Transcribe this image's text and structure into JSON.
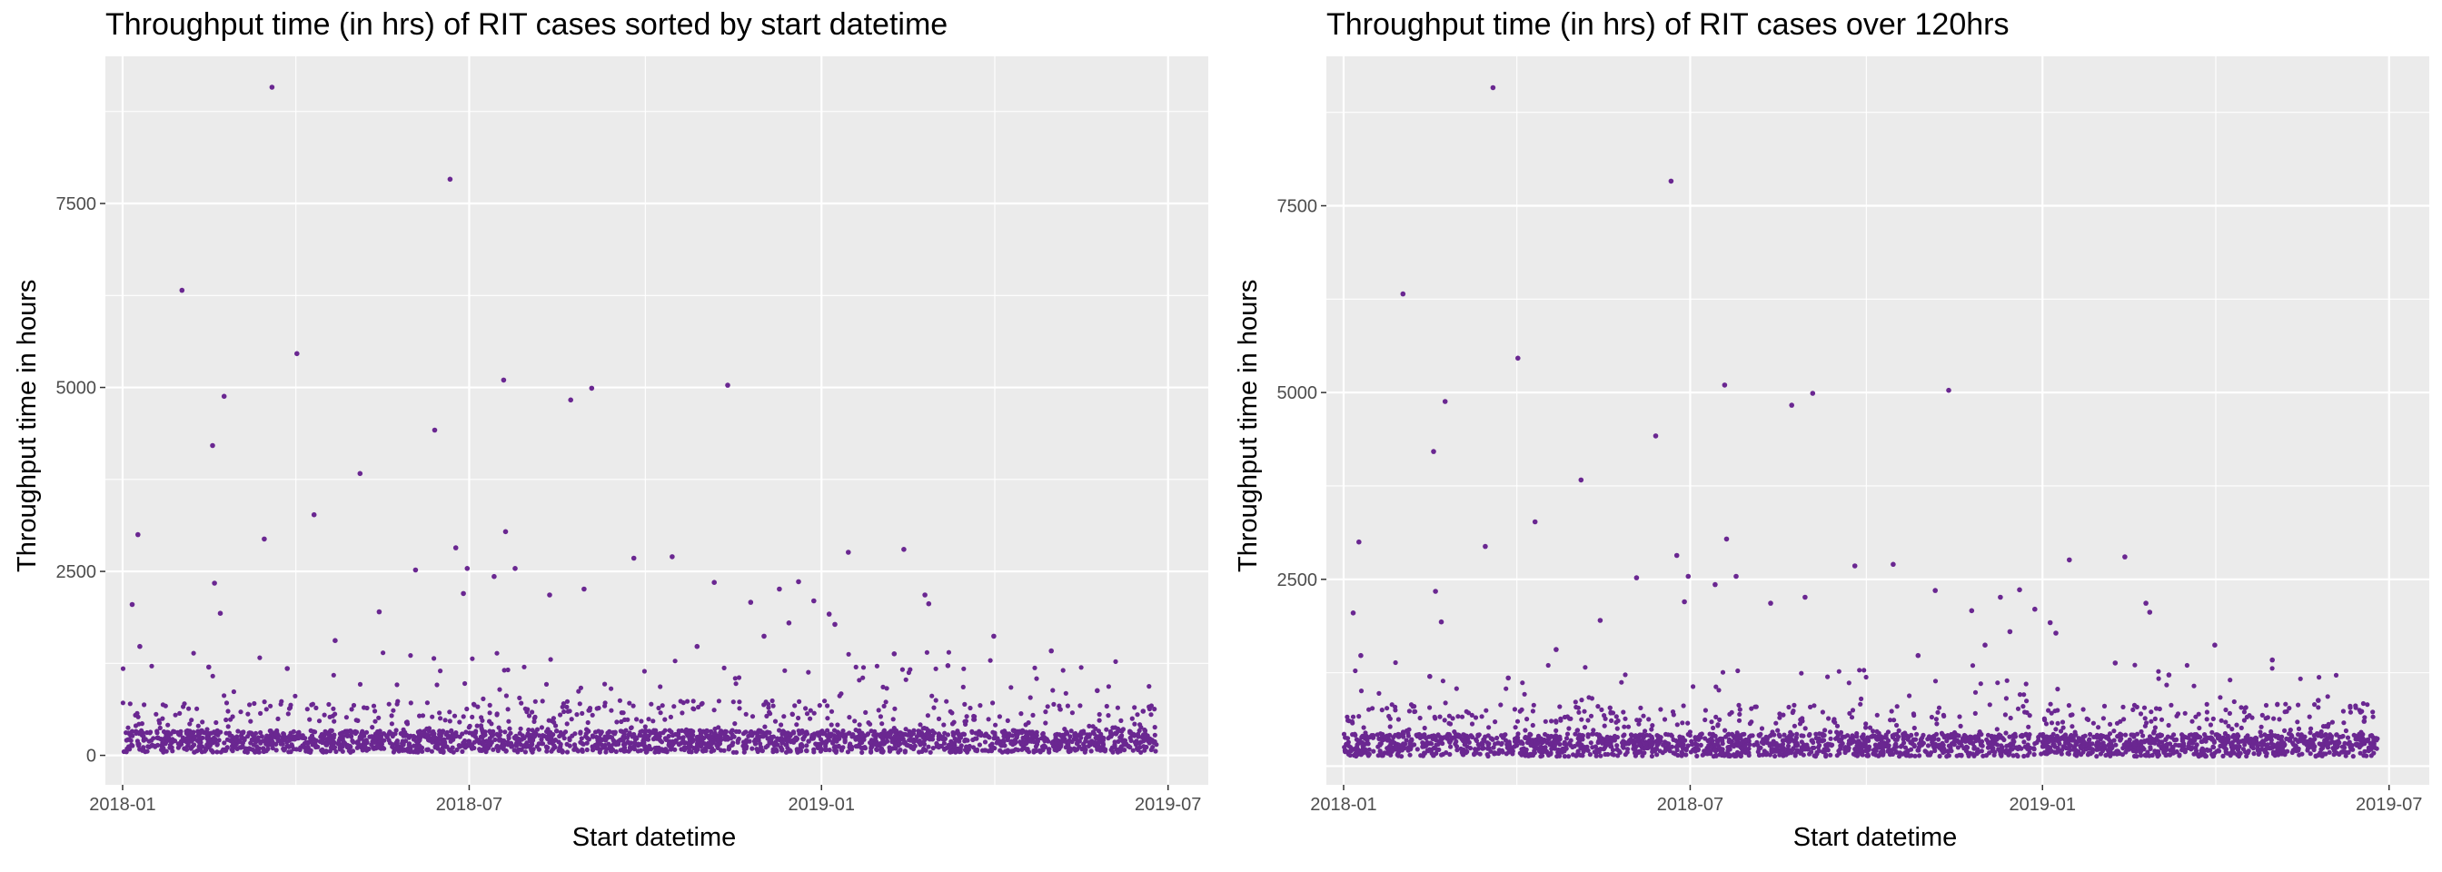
{
  "theme": {
    "panel_background": "#ebebeb",
    "grid_color": "#ffffff",
    "point_color": "#6a2791",
    "text_color": "#000000",
    "tick_color": "#4d4d4d"
  },
  "chart_data": [
    {
      "type": "scatter",
      "title": "Throughput time (in hrs) of RIT cases sorted by start datetime",
      "xlabel": "Start datetime",
      "ylabel": "Throughput time in hours",
      "x_ticks": [
        "2018-01",
        "2018-07",
        "2019-01",
        "2019-07"
      ],
      "y_ticks": [
        0,
        2500,
        5000,
        7500
      ],
      "xlim": [
        "2017-12-23",
        "2019-07-22"
      ],
      "ylim": [
        -400,
        9500
      ],
      "grid": true,
      "legend": "none",
      "series": [
        {
          "points": [
            [
              "2018-01-06",
              2050
            ],
            [
              "2018-01-09",
              3000
            ],
            [
              "2018-01-10",
              1480
            ],
            [
              "2018-02-01",
              6320
            ],
            [
              "2018-02-15",
              1200
            ],
            [
              "2018-02-17",
              4210
            ],
            [
              "2018-02-18",
              2340
            ],
            [
              "2018-02-21",
              1930
            ],
            [
              "2018-02-23",
              4880
            ],
            [
              "2018-03-16",
              2940
            ],
            [
              "2018-03-20",
              9080
            ],
            [
              "2018-03-28",
              1180
            ],
            [
              "2018-04-02",
              5460
            ],
            [
              "2018-04-11",
              3270
            ],
            [
              "2018-04-22",
              1560
            ],
            [
              "2018-05-05",
              3830
            ],
            [
              "2018-05-15",
              1950
            ],
            [
              "2018-06-03",
              2520
            ],
            [
              "2018-06-13",
              4420
            ],
            [
              "2018-06-21",
              7830
            ],
            [
              "2018-06-24",
              2820
            ],
            [
              "2018-06-28",
              2200
            ],
            [
              "2018-06-30",
              2540
            ],
            [
              "2018-07-14",
              2430
            ],
            [
              "2018-07-19",
              5100
            ],
            [
              "2018-07-20",
              3040
            ],
            [
              "2018-07-25",
              2540
            ],
            [
              "2018-08-12",
              2180
            ],
            [
              "2018-08-23",
              4830
            ],
            [
              "2018-08-30",
              2260
            ],
            [
              "2018-09-03",
              4990
            ],
            [
              "2018-09-25",
              2680
            ],
            [
              "2018-10-15",
              2700
            ],
            [
              "2018-10-28",
              1480
            ],
            [
              "2018-11-06",
              2350
            ],
            [
              "2018-11-13",
              5030
            ],
            [
              "2018-11-25",
              2080
            ],
            [
              "2018-12-02",
              1620
            ],
            [
              "2018-12-10",
              2260
            ],
            [
              "2018-12-15",
              1800
            ],
            [
              "2018-12-20",
              2360
            ],
            [
              "2018-12-28",
              2100
            ],
            [
              "2019-01-05",
              1920
            ],
            [
              "2019-01-08",
              1780
            ],
            [
              "2019-01-15",
              2760
            ],
            [
              "2019-02-08",
              1380
            ],
            [
              "2019-02-13",
              2800
            ],
            [
              "2019-02-24",
              2180
            ],
            [
              "2019-02-26",
              2060
            ],
            [
              "2019-03-08",
              1220
            ],
            [
              "2019-04-01",
              1620
            ],
            [
              "2019-05-01",
              1420
            ],
            [
              "2019-05-25",
              880
            ],
            [
              "2019-06-18",
              600
            ]
          ]
        }
      ]
    },
    {
      "type": "scatter",
      "title": "Throughput time (in hrs) of RIT cases over 120hrs",
      "xlabel": "Start datetime",
      "ylabel": "Throughput time in hours",
      "x_ticks": [
        "2018-01",
        "2018-07",
        "2019-01",
        "2019-07"
      ],
      "y_ticks": [
        2500,
        5000,
        7500
      ],
      "xlim": [
        "2017-12-23",
        "2019-07-22"
      ],
      "ylim": [
        -250,
        9500
      ],
      "grid": true,
      "legend": "none",
      "series": [
        {
          "points": [
            [
              "2018-01-06",
              2050
            ],
            [
              "2018-01-09",
              3000
            ],
            [
              "2018-01-10",
              1480
            ],
            [
              "2018-02-01",
              6320
            ],
            [
              "2018-02-15",
              1200
            ],
            [
              "2018-02-17",
              4210
            ],
            [
              "2018-02-18",
              2340
            ],
            [
              "2018-02-21",
              1930
            ],
            [
              "2018-02-23",
              4880
            ],
            [
              "2018-03-16",
              2940
            ],
            [
              "2018-03-20",
              9080
            ],
            [
              "2018-03-28",
              1180
            ],
            [
              "2018-04-02",
              5460
            ],
            [
              "2018-04-11",
              3270
            ],
            [
              "2018-04-22",
              1560
            ],
            [
              "2018-05-05",
              3830
            ],
            [
              "2018-05-15",
              1950
            ],
            [
              "2018-06-03",
              2520
            ],
            [
              "2018-06-13",
              4420
            ],
            [
              "2018-06-21",
              7830
            ],
            [
              "2018-06-24",
              2820
            ],
            [
              "2018-06-28",
              2200
            ],
            [
              "2018-06-30",
              2540
            ],
            [
              "2018-07-14",
              2430
            ],
            [
              "2018-07-19",
              5100
            ],
            [
              "2018-07-20",
              3040
            ],
            [
              "2018-07-25",
              2540
            ],
            [
              "2018-08-12",
              2180
            ],
            [
              "2018-08-23",
              4830
            ],
            [
              "2018-08-30",
              2260
            ],
            [
              "2018-09-03",
              4990
            ],
            [
              "2018-09-25",
              2680
            ],
            [
              "2018-10-15",
              2700
            ],
            [
              "2018-10-28",
              1480
            ],
            [
              "2018-11-06",
              2350
            ],
            [
              "2018-11-13",
              5030
            ],
            [
              "2018-11-25",
              2080
            ],
            [
              "2018-12-02",
              1620
            ],
            [
              "2018-12-10",
              2260
            ],
            [
              "2018-12-15",
              1800
            ],
            [
              "2018-12-20",
              2360
            ],
            [
              "2018-12-28",
              2100
            ],
            [
              "2019-01-05",
              1920
            ],
            [
              "2019-01-08",
              1780
            ],
            [
              "2019-01-15",
              2760
            ],
            [
              "2019-02-08",
              1380
            ],
            [
              "2019-02-13",
              2800
            ],
            [
              "2019-02-24",
              2180
            ],
            [
              "2019-02-26",
              2060
            ],
            [
              "2019-03-08",
              1220
            ],
            [
              "2019-04-01",
              1620
            ],
            [
              "2019-05-01",
              1420
            ],
            [
              "2019-05-25",
              880
            ],
            [
              "2019-06-18",
              600
            ]
          ]
        }
      ]
    }
  ]
}
